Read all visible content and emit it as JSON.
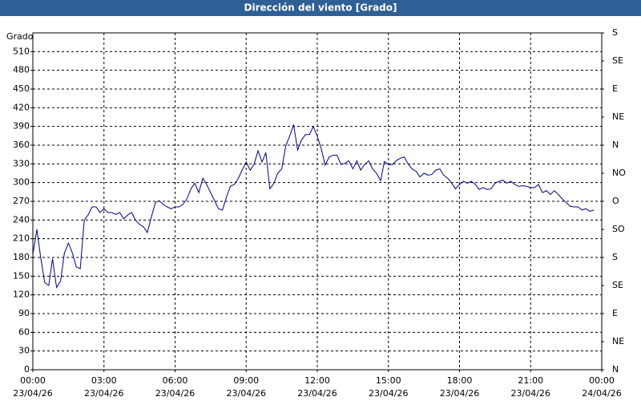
{
  "chart_data": {
    "type": "line",
    "title": "Dirección del viento [Grado]",
    "y_label": "Grado",
    "x": [
      0,
      0.17,
      0.33,
      0.5,
      0.67,
      0.83,
      1,
      1.17,
      1.33,
      1.5,
      1.67,
      1.83,
      2,
      2.17,
      2.33,
      2.5,
      2.67,
      2.83,
      3,
      3.17,
      3.33,
      3.5,
      3.67,
      3.83,
      4,
      4.17,
      4.33,
      4.5,
      4.67,
      4.83,
      5,
      5.17,
      5.33,
      5.5,
      5.67,
      5.83,
      6,
      6.17,
      6.33,
      6.5,
      6.67,
      6.83,
      7,
      7.17,
      7.33,
      7.5,
      7.67,
      7.83,
      8,
      8.17,
      8.33,
      8.5,
      8.67,
      8.83,
      9,
      9.17,
      9.33,
      9.5,
      9.67,
      9.83,
      10,
      10.17,
      10.33,
      10.5,
      10.67,
      10.83,
      11,
      11.17,
      11.33,
      11.5,
      11.67,
      11.83,
      12,
      12.17,
      12.33,
      12.5,
      12.67,
      12.83,
      13,
      13.17,
      13.33,
      13.5,
      13.67,
      13.83,
      14,
      14.17,
      14.33,
      14.5,
      14.67,
      14.83,
      15,
      15.17,
      15.33,
      15.5,
      15.67,
      15.83,
      16,
      16.17,
      16.33,
      16.5,
      16.67,
      16.83,
      17,
      17.17,
      17.33,
      17.5,
      17.67,
      17.83,
      18,
      18.17,
      18.33,
      18.5,
      18.67,
      18.83,
      19,
      19.17,
      19.33,
      19.5,
      19.67,
      19.83,
      20,
      20.17,
      20.33,
      20.5,
      20.67,
      20.83,
      21,
      21.17,
      21.33,
      21.5,
      21.67,
      21.83,
      22,
      22.17,
      22.33,
      22.5,
      22.67,
      22.83,
      23,
      23.17,
      23.33,
      23.5,
      23.67
    ],
    "series": [
      {
        "name": "Dirección del viento",
        "color": "#00008b",
        "values": [
          185,
          225,
          180,
          140,
          135,
          178,
          132,
          142,
          187,
          203,
          187,
          165,
          162,
          240,
          248,
          261,
          261,
          252,
          258,
          252,
          252,
          249,
          252,
          242,
          248,
          252,
          240,
          233,
          229,
          220,
          245,
          268,
          271,
          265,
          261,
          258,
          261,
          261,
          265,
          274,
          290,
          299,
          284,
          307,
          297,
          284,
          271,
          258,
          256,
          277,
          294,
          297,
          307,
          320,
          333,
          320,
          329,
          351,
          333,
          348,
          290,
          299,
          315,
          322,
          359,
          374,
          393,
          352,
          368,
          377,
          377,
          390,
          374,
          354,
          328,
          341,
          344,
          344,
          329,
          331,
          335,
          322,
          335,
          320,
          329,
          335,
          322,
          315,
          303,
          334,
          329,
          329,
          335,
          339,
          341,
          330,
          322,
          318,
          309,
          315,
          312,
          313,
          320,
          322,
          312,
          307,
          299,
          290,
          297,
          302,
          299,
          302,
          297,
          289,
          292,
          289,
          290,
          299,
          302,
          304,
          299,
          302,
          297,
          294,
          295,
          294,
          292,
          292,
          297,
          284,
          287,
          281,
          287,
          281,
          274,
          268,
          262,
          261,
          261,
          256,
          258,
          254,
          256
        ]
      }
    ],
    "xlim": [
      0,
      24
    ],
    "xticks": [
      {
        "value": 0,
        "label": "00:00",
        "date": "23/04/26"
      },
      {
        "value": 3,
        "label": "03:00",
        "date": "23/04/26"
      },
      {
        "value": 6,
        "label": "06:00",
        "date": "23/04/26"
      },
      {
        "value": 9,
        "label": "09:00",
        "date": "23/04/26"
      },
      {
        "value": 12,
        "label": "12:00",
        "date": "23/04/26"
      },
      {
        "value": 15,
        "label": "15:00",
        "date": "23/04/26"
      },
      {
        "value": 18,
        "label": "18:00",
        "date": "23/04/26"
      },
      {
        "value": 21,
        "label": "21:00",
        "date": "23/04/26"
      },
      {
        "value": 24,
        "label": "00:00",
        "date": "24/04/26"
      }
    ],
    "ylim": [
      0,
      540
    ],
    "yticks": [
      0,
      30,
      60,
      90,
      120,
      150,
      180,
      210,
      240,
      270,
      300,
      330,
      360,
      390,
      420,
      450,
      480,
      510
    ],
    "y2lim": [
      0,
      540
    ],
    "y2ticks": [
      {
        "value": 0,
        "label": "N"
      },
      {
        "value": 45,
        "label": "NE"
      },
      {
        "value": 90,
        "label": "E"
      },
      {
        "value": 135,
        "label": "SE"
      },
      {
        "value": 180,
        "label": "S"
      },
      {
        "value": 225,
        "label": "SO"
      },
      {
        "value": 270,
        "label": "O"
      },
      {
        "value": 315,
        "label": "NO"
      },
      {
        "value": 360,
        "label": "N"
      },
      {
        "value": 405,
        "label": "NE"
      },
      {
        "value": 450,
        "label": "E"
      },
      {
        "value": 495,
        "label": "SE"
      },
      {
        "value": 540,
        "label": "S"
      }
    ],
    "grid": true
  }
}
